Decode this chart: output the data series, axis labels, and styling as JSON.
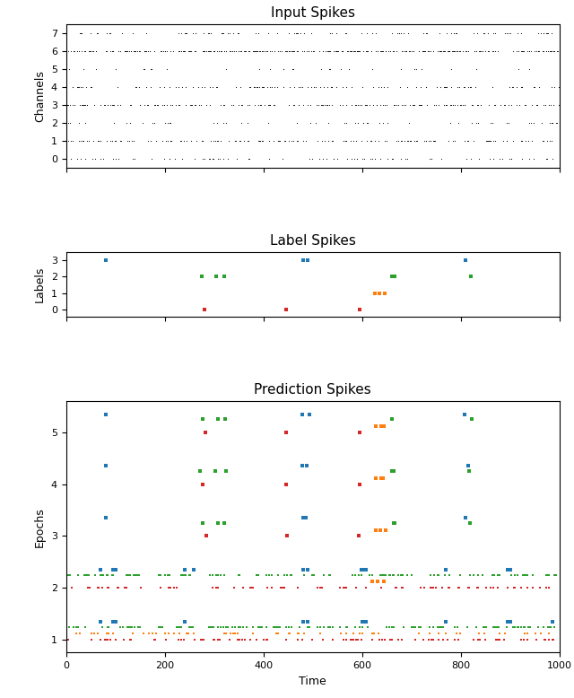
{
  "title_input": "Input Spikes",
  "title_label": "Label Spikes",
  "title_pred": "Prediction Spikes",
  "xlabel": "Time",
  "ylabel_input": "Channels",
  "ylabel_label": "Labels",
  "ylabel_pred": "Epochs",
  "n_channels": 8,
  "time_max": 1000,
  "colors": {
    "blue": "#1f77b4",
    "orange": "#ff7f0e",
    "green": "#2ca02c",
    "red": "#d62728",
    "black": "#000000"
  },
  "input_spike_counts": [
    80,
    150,
    55,
    180,
    110,
    30,
    280,
    90
  ],
  "label_spike_events": {
    "blue_times": [
      80,
      480,
      490,
      810
    ],
    "green_times": [
      275,
      305,
      320,
      660,
      665,
      820
    ],
    "orange_times": [
      625,
      635,
      645
    ],
    "red_times": [
      280,
      445,
      595
    ]
  },
  "label_spike_values": {
    "blue": 3,
    "green": 2,
    "orange": 1,
    "red": 0
  },
  "pred_offsets": {
    "blue": 0.35,
    "green": 0.25,
    "orange": 0.12,
    "red": 0.0
  },
  "epoch1_counts": {
    "green": 130,
    "orange": 60,
    "red": 90
  },
  "epoch1_blue": [
    70,
    95,
    100,
    240,
    480,
    490,
    600,
    608,
    770,
    895,
    900,
    985
  ],
  "epoch2_counts": {
    "green": 120,
    "red": 75
  },
  "epoch2_orange": [
    620,
    632,
    643
  ],
  "epoch2_blue": [
    70,
    95,
    100,
    240,
    258,
    480,
    490,
    598,
    605,
    608,
    770,
    895,
    900
  ],
  "epochs_sparse": [
    3,
    4,
    5
  ],
  "sparse_blue_base": [
    80,
    480,
    490,
    810
  ],
  "sparse_green_base": [
    275,
    305,
    320,
    660,
    665,
    820
  ],
  "sparse_orange_base": [
    625,
    635,
    645
  ],
  "sparse_red_base": [
    280,
    445,
    595
  ],
  "figsize": [
    6.4,
    7.78
  ],
  "dpi": 100,
  "seed_input": 42,
  "seed_e1": 43,
  "seed_e2": 44
}
